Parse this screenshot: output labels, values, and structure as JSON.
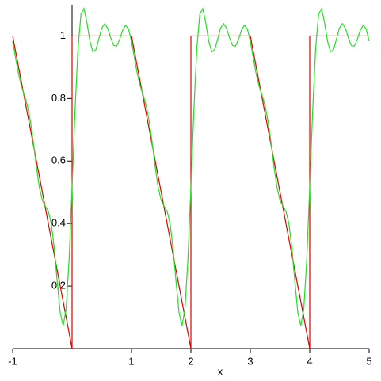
{
  "chart_data": {
    "type": "line",
    "x_label": "x",
    "xlim": [
      -1,
      5
    ],
    "ylim": [
      0,
      1.1
    ],
    "xticks": [
      -1,
      1,
      2,
      3,
      4,
      5
    ],
    "yticks": [
      0.2,
      0.4,
      0.6,
      0.8,
      1
    ],
    "series": [
      {
        "color": "#e00000",
        "x": [
          -1,
          0,
          0,
          1,
          2,
          2,
          3,
          4,
          4,
          5
        ],
        "values": [
          1,
          0,
          1,
          1,
          0,
          1,
          1,
          0,
          1,
          1
        ]
      },
      {
        "color": "#22e022",
        "x": [
          -1,
          -0.95,
          -0.9,
          -0.85,
          -0.8,
          -0.75,
          -0.7,
          -0.65,
          -0.6,
          -0.55,
          -0.5,
          -0.45,
          -0.4,
          -0.35,
          -0.3,
          -0.25,
          -0.2,
          -0.15,
          -0.1,
          -0.05,
          0,
          0.05,
          0.1,
          0.15,
          0.2,
          0.25,
          0.3,
          0.35,
          0.4,
          0.45,
          0.5,
          0.55,
          0.6,
          0.65,
          0.7,
          0.75,
          0.8,
          0.85,
          0.9,
          0.95,
          1,
          1.05,
          1.1,
          1.15,
          1.2,
          1.25,
          1.3,
          1.35,
          1.4,
          1.45,
          1.5,
          1.55,
          1.6,
          1.65,
          1.7,
          1.75,
          1.8,
          1.85,
          1.9,
          1.95,
          2,
          2.05,
          2.1,
          2.15,
          2.2,
          2.25,
          2.3,
          2.35,
          2.4,
          2.45,
          2.5,
          2.55,
          2.6,
          2.65,
          2.7,
          2.75,
          2.8,
          2.85,
          2.9,
          2.95,
          3,
          3.05,
          3.1,
          3.15,
          3.2,
          3.25,
          3.3,
          3.35,
          3.4,
          3.45,
          3.5,
          3.55,
          3.6,
          3.65,
          3.7,
          3.75,
          3.8,
          3.85,
          3.9,
          3.95,
          4,
          4.05,
          4.1,
          4.15,
          4.2,
          4.25,
          4.3,
          4.35,
          4.4,
          4.45,
          4.5,
          4.55,
          4.6,
          4.65,
          4.7,
          4.75,
          4.8,
          4.85,
          4.9,
          4.95,
          5
        ],
        "values": [
          0.9832,
          0.9288,
          0.8773,
          0.8385,
          0.809,
          0.7758,
          0.7257,
          0.6566,
          0.5801,
          0.5147,
          0.4741,
          0.4555,
          0.4393,
          0.3994,
          0.3211,
          0.214,
          0.115,
          0.0729,
          0.1269,
          0.2852,
          0.5168,
          0.7632,
          0.9613,
          1.0705,
          1.0874,
          1.0426,
          0.9835,
          0.9496,
          0.9557,
          0.9901,
          1.0259,
          1.0397,
          1.0249,
          0.9944,
          0.9697,
          0.9676,
          0.9886,
          1.0181,
          1.0345,
          1.0228,
          0.9832,
          0.9288,
          0.8773,
          0.8385,
          0.809,
          0.7758,
          0.7257,
          0.6566,
          0.5801,
          0.5147,
          0.4741,
          0.4555,
          0.4393,
          0.3994,
          0.3211,
          0.214,
          0.115,
          0.0729,
          0.1269,
          0.2852,
          0.5168,
          0.7632,
          0.9613,
          1.0705,
          1.0874,
          1.0426,
          0.9835,
          0.9496,
          0.9557,
          0.9901,
          1.0259,
          1.0397,
          1.0249,
          0.9944,
          0.9697,
          0.9676,
          0.9886,
          1.0181,
          1.0345,
          1.0228,
          0.9832,
          0.9288,
          0.8773,
          0.8385,
          0.809,
          0.7758,
          0.7257,
          0.6566,
          0.5801,
          0.5147,
          0.4741,
          0.4555,
          0.4393,
          0.3994,
          0.3211,
          0.214,
          0.115,
          0.0729,
          0.1269,
          0.2852,
          0.5168,
          0.7632,
          0.9613,
          1.0705,
          1.0874,
          1.0426,
          0.9835,
          0.9496,
          0.9557,
          0.9901,
          1.0259,
          1.0397,
          1.0249,
          0.9944,
          0.9697,
          0.9676,
          0.9886,
          1.0181,
          1.0345,
          1.0228,
          0.9832
        ]
      }
    ]
  }
}
